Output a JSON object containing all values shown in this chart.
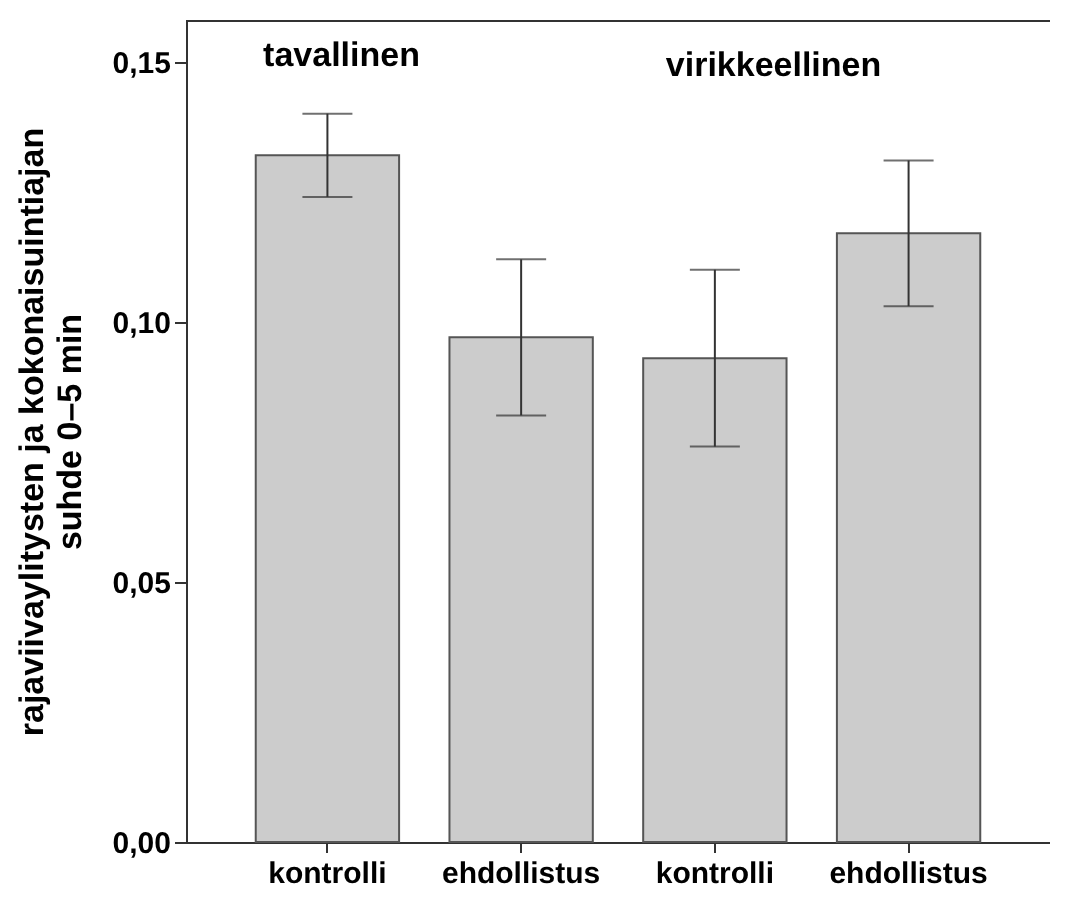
{
  "chart_data": {
    "type": "bar",
    "ylabel": "rajaviivaylitysten ja kokonaisuintiajan\nsuhde 0–5 min",
    "categories": [
      "kontrolli",
      "ehdollistus",
      "kontrolli",
      "ehdollistus"
    ],
    "values": [
      0.132,
      0.097,
      0.093,
      0.117
    ],
    "errors": [
      [
        0.124,
        0.14
      ],
      [
        0.082,
        0.112
      ],
      [
        0.076,
        0.11
      ],
      [
        0.103,
        0.131
      ]
    ],
    "color": "#cccccc",
    "ylim": [
      0,
      0.158
    ],
    "yticks": [
      {
        "value": 0,
        "label": "0,00"
      },
      {
        "value": 0.05,
        "label": "0,05"
      },
      {
        "value": 0.1,
        "label": "0,10"
      },
      {
        "value": 0.15,
        "label": "0,15"
      }
    ],
    "annotations": [
      "tavallinen",
      "virikkeellinen"
    ],
    "grid": false
  }
}
